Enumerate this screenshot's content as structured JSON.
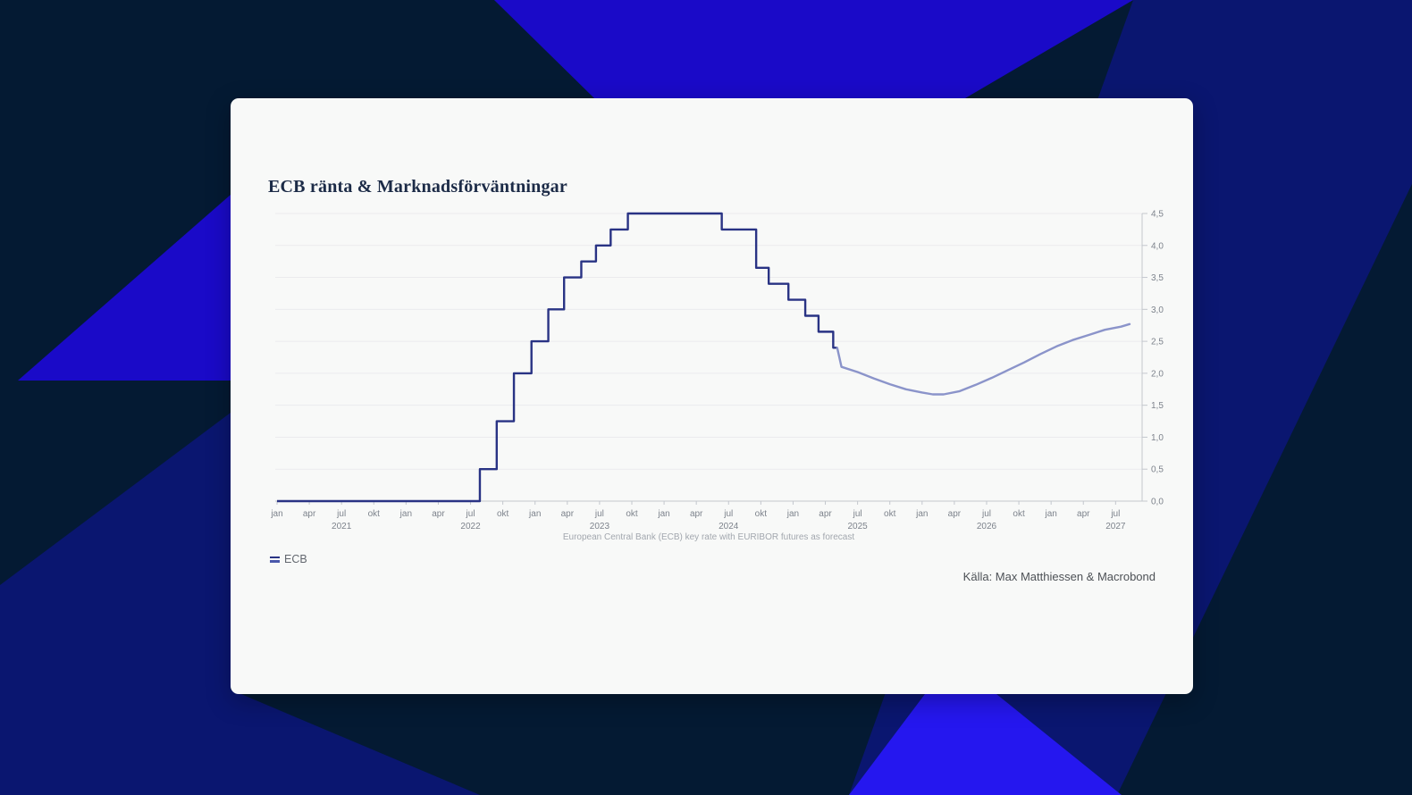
{
  "theme": {
    "page_navy": "#041a33",
    "page_indigo": "#0a1670",
    "page_blue": "#1a0ac8",
    "page_blue_bright": "#2517ef",
    "card_bg": "#f8f9f8",
    "title_color": "#1c2b47",
    "actual_line": "#293384",
    "forecast_line": "#8b94ca",
    "legend_bar2": "#4a58ab",
    "grid_line": "#ebebee",
    "axis_line": "#c3c7cd",
    "tick_text": "#7d838c",
    "subtitle_text": "#a2a7ae",
    "source_text": "#4d5156",
    "legend_text": "#63686f"
  },
  "chart_data": {
    "type": "line",
    "title": "ECB ränta & Marknadsförväntningar",
    "subtitle": "European Central Bank (ECB) key rate with EURIBOR futures as forecast",
    "source": "Källa: Max Matthiessen & Macrobond",
    "legend": [
      {
        "label": "ECB"
      }
    ],
    "grid": true,
    "legend_position": "bottom-left",
    "x_axis": {
      "range": [
        "2021-01",
        "2027-08"
      ],
      "month_labels": [
        "jan",
        "apr",
        "jul",
        "okt"
      ],
      "years": [
        "2021",
        "2022",
        "2023",
        "2024",
        "2025",
        "2026",
        "2027"
      ]
    },
    "y_axis": {
      "min": 0,
      "max": 4.5,
      "step": 0.5,
      "side": "right",
      "unit": "%",
      "tick_labels": [
        "0,0",
        "0,5",
        "1,0",
        "1,5",
        "2,0",
        "2,5",
        "3,0",
        "3,5",
        "4,0",
        "4,5"
      ]
    },
    "series": [
      {
        "name": "ECB key rate (actual)",
        "style": "step",
        "points": [
          [
            "2021-01-01",
            0.0
          ],
          [
            "2022-07-27",
            0.5
          ],
          [
            "2022-09-14",
            1.25
          ],
          [
            "2022-11-02",
            2.0
          ],
          [
            "2022-12-21",
            2.5
          ],
          [
            "2023-02-08",
            3.0
          ],
          [
            "2023-03-22",
            3.5
          ],
          [
            "2023-05-10",
            3.75
          ],
          [
            "2023-06-21",
            4.0
          ],
          [
            "2023-08-02",
            4.25
          ],
          [
            "2023-09-20",
            4.5
          ],
          [
            "2024-06-12",
            4.25
          ],
          [
            "2024-09-18",
            3.65
          ],
          [
            "2024-10-23",
            3.4
          ],
          [
            "2024-12-18",
            3.15
          ],
          [
            "2025-02-05",
            2.9
          ],
          [
            "2025-03-12",
            2.65
          ],
          [
            "2025-04-23",
            2.4
          ]
        ]
      },
      {
        "name": "EURIBOR futures forecast",
        "style": "line",
        "points": [
          [
            "2025-05-04",
            2.4
          ],
          [
            "2025-05-16",
            2.1
          ],
          [
            "2025-07-01",
            2.02
          ],
          [
            "2025-08-16",
            1.92
          ],
          [
            "2025-10-01",
            1.83
          ],
          [
            "2025-11-16",
            1.75
          ],
          [
            "2026-01-01",
            1.7
          ],
          [
            "2026-02-01",
            1.67
          ],
          [
            "2026-03-01",
            1.67
          ],
          [
            "2026-04-16",
            1.72
          ],
          [
            "2026-06-01",
            1.82
          ],
          [
            "2026-07-16",
            1.93
          ],
          [
            "2026-09-01",
            2.05
          ],
          [
            "2026-10-16",
            2.17
          ],
          [
            "2026-12-01",
            2.3
          ],
          [
            "2027-01-16",
            2.42
          ],
          [
            "2027-03-01",
            2.52
          ],
          [
            "2027-04-16",
            2.6
          ],
          [
            "2027-06-01",
            2.68
          ],
          [
            "2027-07-16",
            2.73
          ],
          [
            "2027-08-10",
            2.77
          ]
        ]
      }
    ]
  }
}
